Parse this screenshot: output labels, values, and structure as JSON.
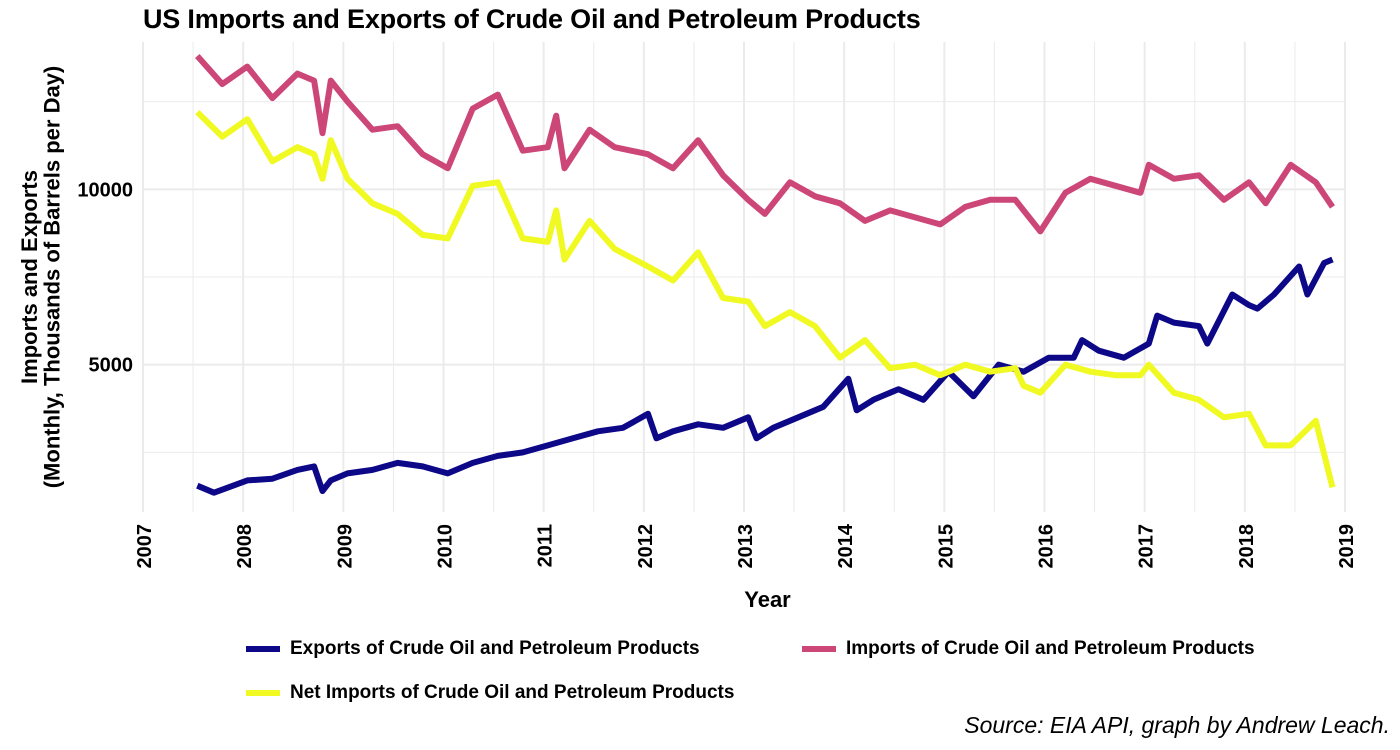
{
  "chart_data": {
    "type": "line",
    "title": "US Imports and Exports of Crude Oil and Petroleum Products",
    "xlabel": "Year",
    "ylabel": [
      "Imports and Exports",
      "(Monthly, Thousands of Barrels per Day)"
    ],
    "xlim": [
      2007,
      2019
    ],
    "ylim": [
      800,
      14200
    ],
    "x_ticks": [
      "2007",
      "2008",
      "2009",
      "2010",
      "2011",
      "2012",
      "2013",
      "2014",
      "2015",
      "2016",
      "2017",
      "2018",
      "2019"
    ],
    "y_ticks": [
      "5000",
      "10000"
    ],
    "y_tick_values": [
      5000,
      10000
    ],
    "grid": true,
    "legend_position": "bottom",
    "source": "Source: EIA API, graph by Andrew Leach.",
    "series": [
      {
        "name": "Exports of Crude Oil and Petroleum Products",
        "color": "#0D0887",
        "x": [
          "2007-07",
          "2007-09",
          "2008-01",
          "2008-04",
          "2008-07",
          "2008-09",
          "2008-10",
          "2008-11",
          "2009-01",
          "2009-04",
          "2009-07",
          "2009-10",
          "2010-01",
          "2010-04",
          "2010-07",
          "2010-10",
          "2011-01",
          "2011-04",
          "2011-07",
          "2011-10",
          "2012-01",
          "2012-02",
          "2012-04",
          "2012-07",
          "2012-10",
          "2013-01",
          "2013-02",
          "2013-04",
          "2013-07",
          "2013-10",
          "2014-01",
          "2014-02",
          "2014-04",
          "2014-07",
          "2014-10",
          "2015-01",
          "2015-04",
          "2015-07",
          "2015-10",
          "2016-01",
          "2016-04",
          "2016-05",
          "2016-07",
          "2016-10",
          "2017-01",
          "2017-02",
          "2017-04",
          "2017-07",
          "2017-08",
          "2017-11",
          "2018-01",
          "2018-02",
          "2018-04",
          "2018-07",
          "2018-08",
          "2018-10",
          "2018-11"
        ],
        "values": [
          1550,
          1350,
          1700,
          1750,
          2000,
          2100,
          1400,
          1700,
          1900,
          2000,
          2200,
          2100,
          1900,
          2200,
          2400,
          2500,
          2700,
          2900,
          3100,
          3200,
          3600,
          2900,
          3100,
          3300,
          3200,
          3500,
          2900,
          3200,
          3500,
          3800,
          4600,
          3700,
          4000,
          4300,
          4000,
          4800,
          4100,
          5000,
          4800,
          5200,
          5200,
          5700,
          5400,
          5200,
          5600,
          6400,
          6200,
          6100,
          5600,
          7000,
          6700,
          6600,
          7000,
          7800,
          7000,
          7900,
          8000
        ]
      },
      {
        "name": "Imports of Crude Oil and Petroleum Products",
        "color": "#CC4778",
        "x": [
          "2007-07",
          "2007-10",
          "2008-01",
          "2008-04",
          "2008-07",
          "2008-09",
          "2008-10",
          "2008-11",
          "2009-01",
          "2009-04",
          "2009-07",
          "2009-10",
          "2010-01",
          "2010-04",
          "2010-07",
          "2010-10",
          "2011-01",
          "2011-02",
          "2011-03",
          "2011-06",
          "2011-09",
          "2012-01",
          "2012-04",
          "2012-07",
          "2012-10",
          "2013-01",
          "2013-03",
          "2013-06",
          "2013-09",
          "2013-12",
          "2014-03",
          "2014-06",
          "2014-09",
          "2014-12",
          "2015-03",
          "2015-06",
          "2015-09",
          "2015-10",
          "2015-12",
          "2016-03",
          "2016-06",
          "2016-09",
          "2016-12",
          "2017-01",
          "2017-04",
          "2017-07",
          "2017-10",
          "2018-01",
          "2018-03",
          "2018-06",
          "2018-09",
          "2018-11"
        ],
        "values": [
          13800,
          13000,
          13500,
          12600,
          13300,
          13100,
          11600,
          13100,
          12500,
          11700,
          11800,
          11000,
          10600,
          12300,
          12700,
          11100,
          11200,
          12100,
          10600,
          11700,
          11200,
          11000,
          10600,
          11400,
          10400,
          9700,
          9300,
          10200,
          9800,
          9600,
          9100,
          9400,
          9200,
          9000,
          9500,
          9700,
          9700,
          9400,
          8800,
          9900,
          10300,
          10100,
          9900,
          10700,
          10300,
          10400,
          9700,
          10200,
          9600,
          10700,
          10200,
          9500
        ]
      },
      {
        "name": "Net Imports of Crude Oil and Petroleum Products",
        "color": "#F0F921",
        "x": [
          "2007-07",
          "2007-10",
          "2008-01",
          "2008-04",
          "2008-07",
          "2008-09",
          "2008-10",
          "2008-11",
          "2009-01",
          "2009-04",
          "2009-07",
          "2009-10",
          "2010-01",
          "2010-04",
          "2010-07",
          "2010-10",
          "2011-01",
          "2011-02",
          "2011-03",
          "2011-06",
          "2011-09",
          "2012-01",
          "2012-04",
          "2012-07",
          "2012-10",
          "2013-01",
          "2013-03",
          "2013-06",
          "2013-09",
          "2013-12",
          "2014-03",
          "2014-06",
          "2014-09",
          "2014-12",
          "2015-03",
          "2015-06",
          "2015-09",
          "2015-10",
          "2015-12",
          "2016-03",
          "2016-06",
          "2016-09",
          "2016-12",
          "2017-01",
          "2017-04",
          "2017-07",
          "2017-10",
          "2018-01",
          "2018-03",
          "2018-06",
          "2018-09",
          "2018-11"
        ],
        "values": [
          12200,
          11500,
          12000,
          10800,
          11200,
          11000,
          10300,
          11400,
          10300,
          9600,
          9300,
          8700,
          8600,
          10100,
          10200,
          8600,
          8500,
          9400,
          8000,
          9100,
          8300,
          7800,
          7400,
          8200,
          6900,
          6800,
          6100,
          6500,
          6100,
          5200,
          5700,
          4900,
          5000,
          4700,
          5000,
          4800,
          4900,
          4400,
          4200,
          5000,
          4800,
          4700,
          4700,
          5000,
          4200,
          4000,
          3500,
          3600,
          2700,
          2700,
          3400,
          1500
        ]
      }
    ]
  },
  "legend": {
    "items": [
      {
        "label": "Exports of Crude Oil and Petroleum Products",
        "color": "#0D0887"
      },
      {
        "label": "Imports of Crude Oil and Petroleum Products",
        "color": "#CC4778"
      },
      {
        "label": "Net Imports of Crude Oil and Petroleum Products",
        "color": "#F0F921"
      }
    ]
  },
  "colors": {
    "gridline": "#EBEBEB",
    "background": "#FFFFFF"
  }
}
